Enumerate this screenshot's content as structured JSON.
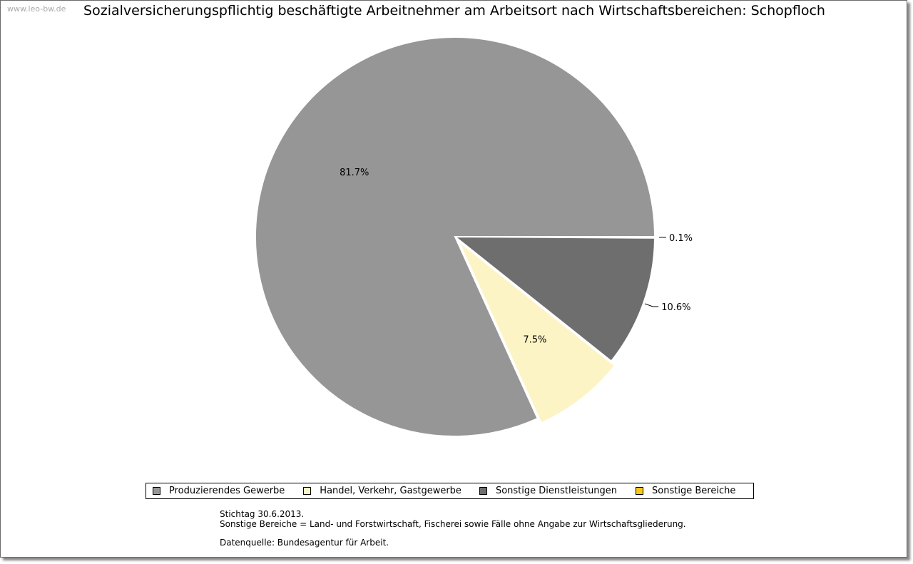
{
  "watermark": "www.leo-bw.de",
  "chart_data": {
    "type": "pie",
    "title": "Sozialversicherungspflichtig beschäftigte Arbeitnehmer am Arbeitsort nach Wirtschaftsbereichen: Schopfloch",
    "slices": [
      {
        "name": "Produzierendes Gewerbe",
        "value": 81.7,
        "label": "81.7%",
        "color": "#969696"
      },
      {
        "name": "Handel, Verkehr, Gastgewerbe",
        "value": 7.5,
        "label": "7.5%",
        "color": "#fdf4c6"
      },
      {
        "name": "Sonstige Dienstleistungen",
        "value": 10.6,
        "label": "10.6%",
        "color": "#6e6e6e"
      },
      {
        "name": "Sonstige Bereiche",
        "value": 0.1,
        "label": "0.1%",
        "color": "#f5c81e"
      }
    ],
    "legend_position": "bottom"
  },
  "notes": {
    "line1": "Stichtag 30.6.2013.",
    "line2": "Sonstige Bereiche = Land- und Forstwirtschaft, Fischerei sowie Fälle ohne Angabe zur Wirtschaftsgliederung.",
    "line3": "Datenquelle: Bundesagentur für Arbeit."
  }
}
